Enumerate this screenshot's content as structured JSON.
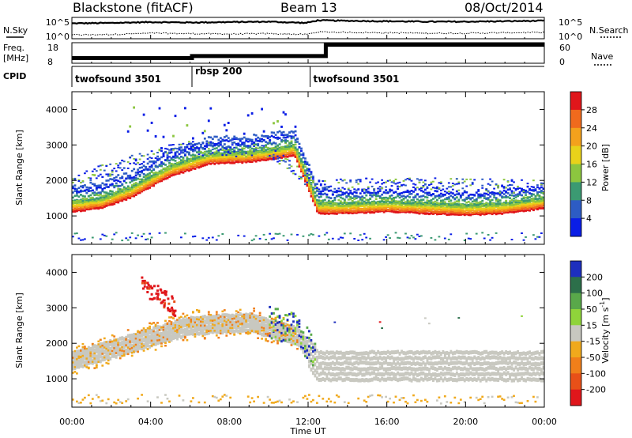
{
  "header": {
    "station": "Blackstone (fitACF)",
    "beam": "Beam 13",
    "date": "08/Oct/2014"
  },
  "panels_top": {
    "nsky_label": "N.Sky",
    "nsky_ticks": [
      "10^5",
      "10^0"
    ],
    "nsearch_label": "N.Search",
    "nsearch_ticks": [
      "10^5",
      "10^0"
    ],
    "freq_label": "Freq.",
    "freq_unit": "[MHz]",
    "freq_ticks": [
      "18",
      "8"
    ],
    "nave_label": "Nave",
    "nave_ticks": [
      "60",
      "0"
    ],
    "cpid_label": "CPID",
    "cpid_segments": [
      {
        "name": "twofsound 3501",
        "start_hr": 0,
        "end_hr": 6.1
      },
      {
        "name": "rbsp 200",
        "start_hr": 6.1,
        "end_hr": 12.1
      },
      {
        "name": "twofsound 3501",
        "start_hr": 12.1,
        "end_hr": 24
      }
    ]
  },
  "axes": {
    "xlabel": "Time UT",
    "xticks": [
      "00:00",
      "04:00",
      "08:00",
      "12:00",
      "16:00",
      "20:00",
      "00:00"
    ],
    "ylabel": "Slant Range [km]",
    "yticks": [
      "1000",
      "2000",
      "3000",
      "4000"
    ]
  },
  "colorbars": {
    "power": {
      "label": "Power [dB]",
      "ticks": [
        "4",
        "8",
        "12",
        "16",
        "20",
        "24",
        "28"
      ],
      "colors": [
        "#0a1ee6",
        "#2d5cc4",
        "#3b9a72",
        "#8cc63f",
        "#e8d21a",
        "#f4a11c",
        "#f06a1d",
        "#e0161b"
      ]
    },
    "velocity": {
      "label_main": "Velocity [m s",
      "label_sup": "-1",
      "label_end": "]",
      "ticks": [
        "200",
        "100",
        "50",
        "15",
        "-15",
        "-50",
        "-100",
        "-200"
      ],
      "colors": [
        "#1d2fbe",
        "#2c6f4a",
        "#59a84a",
        "#8fd43a",
        "#c8c8c0",
        "#f0a91c",
        "#f07f1a",
        "#e85018",
        "#e0161b"
      ]
    }
  },
  "chart_data": [
    {
      "type": "line",
      "title": "N.Sky / N.Search",
      "x_hours": [
        0,
        2,
        4,
        6,
        8,
        10,
        11.9,
        12.5,
        14,
        16,
        18,
        20,
        22,
        24
      ],
      "series": [
        {
          "name": "N.Sky",
          "values": [
            3.6,
            3.7,
            3.9,
            3.8,
            3.9,
            4.0,
            3.7,
            4.3,
            4.2,
            4.1,
            4.0,
            4.0,
            4.1,
            4.2
          ]
        },
        {
          "name": "N.Search",
          "values": [
            0.9,
            1.0,
            1.3,
            1.2,
            1.1,
            1.2,
            1.0,
            1.6,
            1.5,
            1.4,
            1.3,
            1.3,
            1.4,
            1.5
          ]
        }
      ],
      "ylim": [
        0,
        5
      ]
    },
    {
      "type": "line",
      "title": "Freq. / Nave",
      "x_hours": [
        0,
        6.1,
        6.1,
        12.9,
        12.9,
        24
      ],
      "series": [
        {
          "name": "Freq.",
          "values": [
            10.5,
            10.5,
            11.5,
            11.5,
            17.0,
            17.0
          ]
        }
      ],
      "ylim": [
        8,
        18
      ]
    },
    {
      "type": "heatmap",
      "title": "Power [dB]",
      "xlim": [
        0,
        24
      ],
      "ylim": [
        200,
        4500
      ],
      "bands": [
        {
          "label": "main echo",
          "x_hours": [
            0,
            1.5,
            3,
            5,
            7,
            9,
            10.5,
            11.3,
            11.9,
            12.5,
            14,
            16,
            18,
            20,
            22,
            24
          ],
          "range_km": [
            1100,
            1200,
            1500,
            2100,
            2450,
            2500,
            2600,
            2700,
            1900,
            1050,
            1050,
            1100,
            1050,
            1000,
            1050,
            1200
          ],
          "power_db": 26
        },
        {
          "label": "upper band",
          "x_hours": [
            0,
            2,
            4,
            6,
            8,
            10,
            11.5,
            12.5,
            16,
            20,
            24
          ],
          "range_km": [
            2050,
            2300,
            2700,
            2900,
            2850,
            2800,
            2200,
            1800,
            1900,
            1850,
            1800
          ],
          "power_db": 12
        }
      ]
    },
    {
      "type": "heatmap",
      "title": "Velocity [m s-1]",
      "xlim": [
        0,
        24
      ],
      "ylim": [
        200,
        4500
      ],
      "bands": [
        {
          "label": "ground scatter",
          "x_hours": [
            0,
            3,
            6,
            9,
            11.5,
            12.5,
            16,
            20,
            24
          ],
          "range_km": [
            1500,
            2000,
            2500,
            2600,
            2200,
            1400,
            1400,
            1400,
            1400
          ],
          "velocity_ms": 0
        },
        {
          "label": "receding patch",
          "x_hours": [
            3.5,
            4.5,
            5.2
          ],
          "range_km": [
            3600,
            3300,
            3000
          ],
          "velocity_ms": -200
        }
      ]
    }
  ]
}
